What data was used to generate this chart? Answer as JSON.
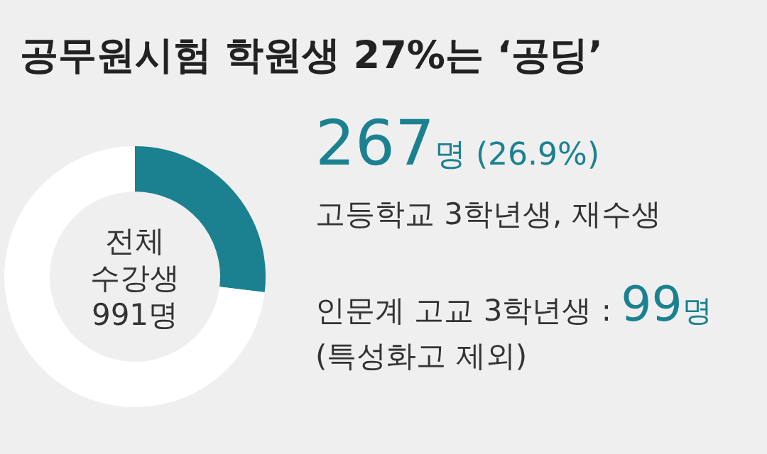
{
  "chart_data": {
    "type": "donut",
    "title": "공무원시험 학원생 27%는 ‘공딩’",
    "categories": [
      "고등학교 3학년생, 재수생",
      null
    ],
    "values": [
      26.9,
      73.1
    ],
    "colors": [
      "#1b8190",
      "#ffffff"
    ],
    "value_labels": [
      "267명 (26.9%)",
      null
    ],
    "annotations": [
      "전체\n수강생\n991명",
      "인문계 고교 3학년생 : 99명",
      "(특성화고 제외)"
    ]
  }
}
